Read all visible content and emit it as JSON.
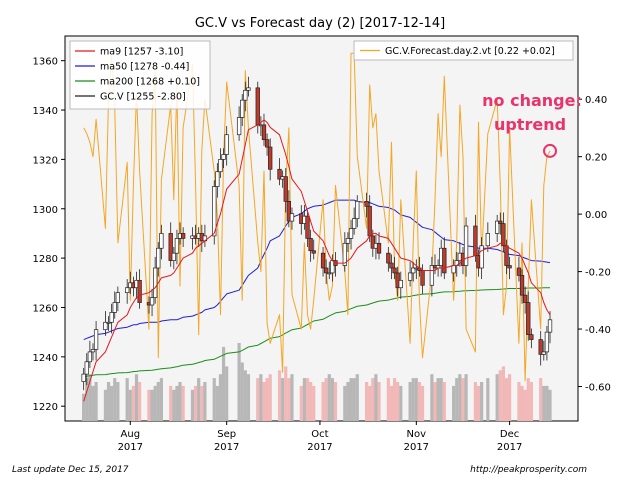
{
  "chart_data": {
    "type": "candlestick",
    "title": "GC.V vs Forecast day (2)  [2017-12-14]",
    "x_ticks": [
      {
        "label": "Aug",
        "year": "2017",
        "date": "2017-08-01"
      },
      {
        "label": "Sep",
        "year": "2017",
        "date": "2017-09-01"
      },
      {
        "label": "Oct",
        "year": "2017",
        "date": "2017-10-01"
      },
      {
        "label": "Nov",
        "year": "2017",
        "date": "2017-11-01"
      },
      {
        "label": "Dec",
        "year": "2017",
        "date": "2017-12-01"
      }
    ],
    "x_range": [
      "2017-07-11",
      "2017-12-23"
    ],
    "y_left": {
      "min": 1214,
      "max": 1370,
      "ticks": [
        1220,
        1240,
        1260,
        1280,
        1300,
        1320,
        1340,
        1360
      ]
    },
    "y_right": {
      "min": -0.72,
      "max": 0.62,
      "ticks": [
        "0.40",
        "0.20",
        "0.00",
        "-0.20",
        "-0.40",
        "-0.60"
      ]
    },
    "legend_left": {
      "placement": "top-left",
      "entries": [
        {
          "label": "ma9 [1257 -3.10]",
          "color": "#e31a1c"
        },
        {
          "label": "ma50 [1278 -0.44]",
          "color": "#1f1fd6"
        },
        {
          "label": "ma200 [1268 +0.10]",
          "color": "#1a8f1a"
        },
        {
          "label": "GC.V [1255 -2.80]",
          "color": "#222222"
        }
      ]
    },
    "legend_right": {
      "placement": "top-right",
      "entries": [
        {
          "label": "GC.V.Forecast.day.2.vt [0.22 +0.02]",
          "color": "#f5a623"
        }
      ]
    },
    "annotation": {
      "line1": "no change:",
      "line2": "uptrend",
      "color": "#e8336d"
    },
    "marker": {
      "date": "2017-12-14",
      "forecast": 0.22
    },
    "footer_left": "Last update Dec 15, 2017",
    "footer_right": "http://peakprosperity.com",
    "dates": [
      "2017-07-17",
      "2017-07-18",
      "2017-07-19",
      "2017-07-20",
      "2017-07-21",
      "2017-07-24",
      "2017-07-25",
      "2017-07-26",
      "2017-07-27",
      "2017-07-28",
      "2017-07-31",
      "2017-08-01",
      "2017-08-02",
      "2017-08-03",
      "2017-08-04",
      "2017-08-07",
      "2017-08-08",
      "2017-08-09",
      "2017-08-10",
      "2017-08-11",
      "2017-08-14",
      "2017-08-15",
      "2017-08-16",
      "2017-08-17",
      "2017-08-18",
      "2017-08-21",
      "2017-08-22",
      "2017-08-23",
      "2017-08-24",
      "2017-08-25",
      "2017-08-28",
      "2017-08-29",
      "2017-08-30",
      "2017-08-31",
      "2017-09-01",
      "2017-09-05",
      "2017-09-06",
      "2017-09-07",
      "2017-09-08",
      "2017-09-11",
      "2017-09-12",
      "2017-09-13",
      "2017-09-14",
      "2017-09-15",
      "2017-09-18",
      "2017-09-19",
      "2017-09-20",
      "2017-09-21",
      "2017-09-22",
      "2017-09-25",
      "2017-09-26",
      "2017-09-27",
      "2017-09-28",
      "2017-09-29",
      "2017-10-02",
      "2017-10-03",
      "2017-10-04",
      "2017-10-05",
      "2017-10-06",
      "2017-10-09",
      "2017-10-10",
      "2017-10-11",
      "2017-10-12",
      "2017-10-13",
      "2017-10-16",
      "2017-10-17",
      "2017-10-18",
      "2017-10-19",
      "2017-10-20",
      "2017-10-23",
      "2017-10-24",
      "2017-10-25",
      "2017-10-26",
      "2017-10-27",
      "2017-10-30",
      "2017-10-31",
      "2017-11-01",
      "2017-11-02",
      "2017-11-03",
      "2017-11-06",
      "2017-11-07",
      "2017-11-08",
      "2017-11-09",
      "2017-11-10",
      "2017-11-13",
      "2017-11-14",
      "2017-11-15",
      "2017-11-16",
      "2017-11-17",
      "2017-11-20",
      "2017-11-21",
      "2017-11-22",
      "2017-11-24",
      "2017-11-27",
      "2017-11-28",
      "2017-11-29",
      "2017-11-30",
      "2017-12-01",
      "2017-12-04",
      "2017-12-05",
      "2017-12-06",
      "2017-12-07",
      "2017-12-08",
      "2017-12-11",
      "2017-12-12",
      "2017-12-13",
      "2017-12-14"
    ],
    "close": [
      1233,
      1238,
      1242,
      1243,
      1251,
      1254,
      1254,
      1258,
      1262,
      1266,
      1268,
      1270,
      1268,
      1271,
      1262,
      1261,
      1264,
      1276,
      1284,
      1290,
      1279,
      1282,
      1288,
      1290,
      1288,
      1289,
      1288,
      1290,
      1287,
      1289,
      1309,
      1315,
      1320,
      1322,
      1330,
      1337,
      1344,
      1348,
      1349,
      1334,
      1334,
      1328,
      1325,
      1316,
      1312,
      1313,
      1303,
      1295,
      1298,
      1294,
      1297,
      1288,
      1283,
      1282,
      1276,
      1274,
      1274,
      1279,
      1277,
      1286,
      1288,
      1292,
      1296,
      1303,
      1301,
      1289,
      1284,
      1286,
      1282,
      1278,
      1276,
      1274,
      1268,
      1271,
      1274,
      1276,
      1276,
      1275,
      1269,
      1277,
      1276,
      1277,
      1284,
      1274,
      1277,
      1279,
      1282,
      1277,
      1293,
      1281,
      1276,
      1285,
      1290,
      1295,
      1294,
      1285,
      1277,
      1276,
      1273,
      1265,
      1262,
      1249,
      1247,
      1241,
      1242,
      1250,
      1255
    ],
    "volume": [
      0.35,
      0.55,
      0.6,
      0.45,
      0.5,
      0.4,
      0.5,
      0.45,
      0.55,
      0.5,
      0.55,
      0.4,
      0.45,
      0.6,
      0.5,
      0.4,
      0.4,
      0.45,
      0.5,
      0.55,
      0.45,
      0.4,
      0.45,
      0.5,
      0.45,
      0.4,
      0.45,
      0.55,
      0.45,
      0.5,
      0.55,
      0.45,
      0.6,
      0.95,
      0.7,
      1.0,
      0.75,
      0.65,
      0.6,
      0.55,
      0.6,
      0.5,
      0.55,
      0.6,
      0.65,
      0.55,
      0.7,
      0.55,
      0.6,
      0.45,
      0.55,
      0.55,
      0.5,
      0.45,
      0.5,
      0.55,
      0.6,
      0.55,
      0.5,
      0.45,
      0.5,
      0.55,
      0.55,
      0.6,
      0.5,
      0.45,
      0.55,
      0.6,
      0.5,
      0.55,
      0.45,
      0.55,
      0.5,
      0.45,
      0.5,
      0.55,
      0.55,
      0.5,
      0.45,
      0.6,
      0.5,
      0.55,
      0.55,
      0.5,
      0.45,
      0.55,
      0.6,
      0.55,
      0.6,
      0.5,
      0.45,
      0.5,
      0.55,
      0.6,
      0.65,
      0.7,
      0.55,
      0.6,
      0.5,
      0.45,
      0.4,
      0.55,
      0.5,
      0.55,
      0.45,
      0.45,
      0.4
    ],
    "ma9": [
      1222,
      1226,
      1230,
      1234,
      1238,
      1242,
      1245,
      1248,
      1251,
      1254,
      1257,
      1260,
      1262,
      1264,
      1265,
      1266,
      1267,
      1268,
      1270,
      1272,
      1273,
      1274,
      1276,
      1278,
      1280,
      1282,
      1284,
      1285,
      1286,
      1287,
      1290,
      1294,
      1298,
      1303,
      1308,
      1314,
      1320,
      1326,
      1332,
      1334,
      1335,
      1336,
      1335,
      1333,
      1330,
      1326,
      1322,
      1317,
      1312,
      1307,
      1303,
      1299,
      1295,
      1291,
      1287,
      1284,
      1281,
      1279,
      1278,
      1278,
      1279,
      1280,
      1282,
      1284,
      1287,
      1289,
      1290,
      1290,
      1289,
      1288,
      1286,
      1284,
      1282,
      1280,
      1279,
      1278,
      1277,
      1276,
      1275,
      1275,
      1275,
      1276,
      1276,
      1276,
      1277,
      1277,
      1278,
      1279,
      1280,
      1281,
      1282,
      1283,
      1284,
      1285,
      1286,
      1286,
      1285,
      1284,
      1282,
      1280,
      1277,
      1274,
      1270,
      1266,
      1262,
      1259,
      1257
    ],
    "ma50": [
      1247,
      1247.5,
      1248,
      1248.5,
      1249,
      1249.5,
      1250,
      1250.5,
      1251,
      1251.5,
      1252,
      1252.5,
      1253,
      1253,
      1253.5,
      1254,
      1254,
      1254,
      1254,
      1254.5,
      1255,
      1255,
      1255,
      1255.5,
      1256,
      1256.5,
      1257,
      1257.5,
      1258,
      1259,
      1260,
      1261,
      1262.5,
      1264,
      1265.5,
      1267,
      1269,
      1271,
      1273,
      1276,
      1279,
      1281.5,
      1284,
      1287,
      1289,
      1291,
      1293,
      1295,
      1296.5,
      1298,
      1299,
      1300,
      1300.5,
      1301,
      1301.5,
      1302,
      1302.5,
      1303,
      1303.5,
      1303.5,
      1303.5,
      1303.5,
      1303.5,
      1303,
      1302.5,
      1302.5,
      1302,
      1301.5,
      1301,
      1300.5,
      1300,
      1299.5,
      1298.5,
      1297.5,
      1296.5,
      1295.5,
      1294.5,
      1293.5,
      1292.5,
      1291.5,
      1290.5,
      1289.5,
      1288.5,
      1287.5,
      1287,
      1286.5,
      1286,
      1285.5,
      1285,
      1284.5,
      1284,
      1284,
      1284,
      1283.5,
      1283,
      1282.5,
      1282,
      1281.5,
      1281,
      1280.5,
      1280,
      1279.5,
      1279,
      1278.8,
      1278.6,
      1278.4,
      1278.2
    ],
    "ma200": [
      1232,
      1232.2,
      1232.3,
      1232.5,
      1232.7,
      1232.8,
      1233,
      1233.2,
      1233.3,
      1233.5,
      1233.6,
      1233.8,
      1234,
      1234.1,
      1234.3,
      1234.5,
      1234.6,
      1234.8,
      1235,
      1235.2,
      1235.5,
      1235.8,
      1236,
      1236.3,
      1236.6,
      1237,
      1237.3,
      1237.7,
      1238,
      1238.5,
      1239,
      1239.6,
      1240.2,
      1240.8,
      1241.4,
      1242,
      1242.6,
      1243.3,
      1244,
      1244.7,
      1245.4,
      1246.1,
      1246.8,
      1247.5,
      1248.2,
      1248.9,
      1249.6,
      1250.3,
      1251,
      1251.7,
      1252.4,
      1253.1,
      1253.8,
      1254.5,
      1255.2,
      1255.9,
      1256.6,
      1257.2,
      1257.8,
      1258.4,
      1259,
      1259.5,
      1260,
      1260.5,
      1261,
      1261.4,
      1261.8,
      1262.2,
      1262.6,
      1263,
      1263.3,
      1263.6,
      1263.9,
      1264.2,
      1264.5,
      1264.8,
      1265,
      1265.2,
      1265.4,
      1265.6,
      1265.8,
      1266,
      1266.2,
      1266.3,
      1266.4,
      1266.5,
      1266.6,
      1266.7,
      1266.8,
      1266.9,
      1267,
      1267.1,
      1267.2,
      1267.3,
      1267.4,
      1267.5,
      1267.6,
      1267.7,
      1267.7,
      1267.8,
      1267.8,
      1267.9,
      1267.9,
      1267.9,
      1268,
      1268,
      1268
    ],
    "forecast": [
      0.3,
      0.28,
      0.25,
      0.2,
      0.33,
      -0.05,
      0.4,
      0.55,
      0.38,
      -0.1,
      0.18,
      -0.3,
      0.1,
      0.42,
      0.15,
      -0.4,
      0.35,
      0.5,
      -0.5,
      0.12,
      0.38,
      0.05,
      0.45,
      -0.25,
      0.3,
      0.52,
      0.1,
      -0.42,
      0.22,
      0.4,
      0.15,
      0.0,
      -0.35,
      0.2,
      0.46,
      0.1,
      -0.3,
      0.5,
      0.3,
      -0.1,
      -0.2,
      0.15,
      -0.38,
      -0.45,
      -0.35,
      -0.55,
      0.1,
      0.3,
      -0.28,
      -0.4,
      -0.1,
      -0.35,
      -0.4,
      -0.3,
      0.05,
      -0.2,
      -0.3,
      -0.25,
      0.1,
      -0.2,
      -0.35,
      0.56,
      0.56,
      0.2,
      -0.05,
      0.45,
      0.3,
      0.35,
      0.15,
      -0.1,
      0.25,
      -0.2,
      -0.3,
      0.05,
      -0.45,
      -0.1,
      0.15,
      -0.3,
      -0.5,
      -0.2,
      0.05,
      0.35,
      0.2,
      0.48,
      -0.3,
      -0.1,
      0.38,
      0.2,
      -0.4,
      -0.48,
      0.32,
      -0.15,
      0.28,
      0.4,
      0.1,
      -0.35,
      -0.25,
      0.3,
      -0.45,
      -0.1,
      -0.58,
      -0.25,
      0.05,
      -0.4,
      0.1,
      0.2,
      0.22
    ]
  }
}
